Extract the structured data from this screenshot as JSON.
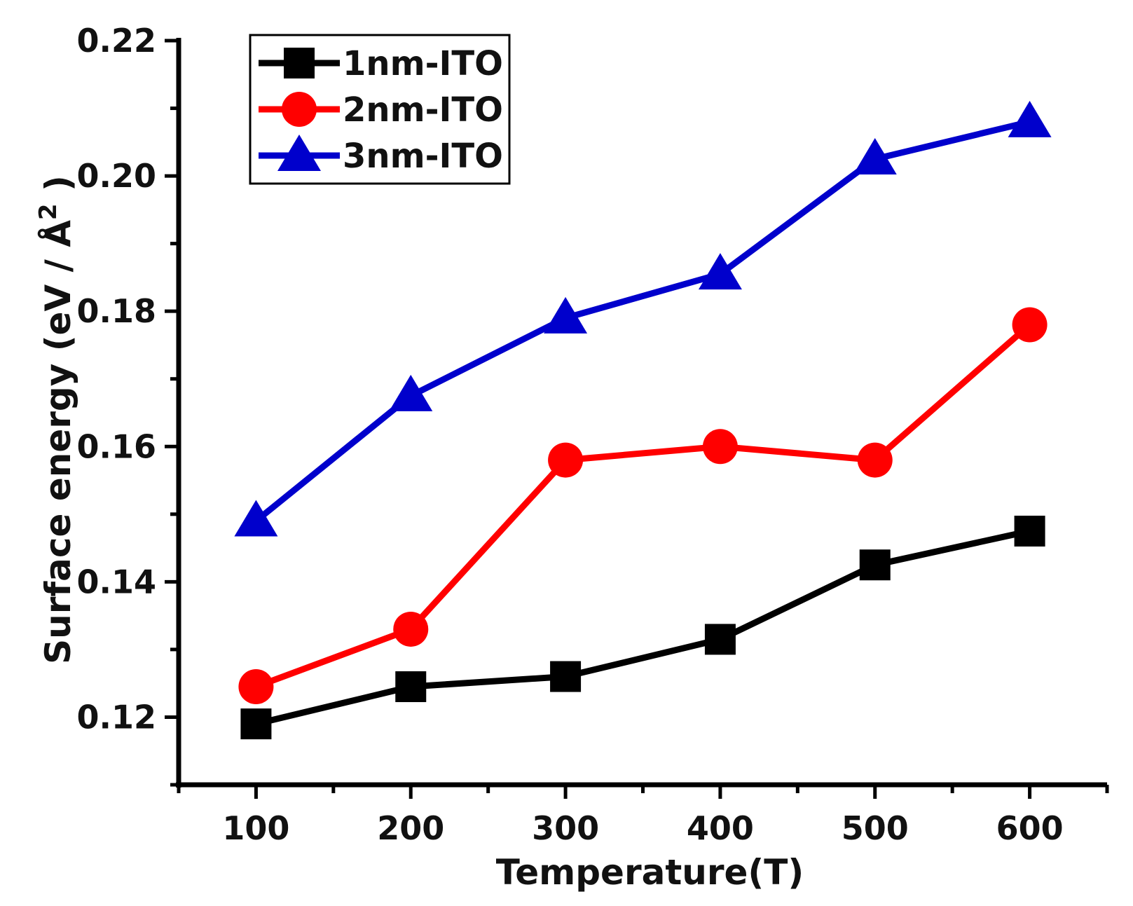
{
  "chart_data": {
    "type": "line",
    "title": "",
    "xlabel": "Temperature(T)",
    "ylabel": "Surface energy (eV / Å²)",
    "ylabel_main": "Surface energy (eV / Å",
    "ylabel_sup": "2",
    "ylabel_close": ")",
    "x": [
      100,
      200,
      300,
      400,
      500,
      600
    ],
    "xlim": [
      50,
      650
    ],
    "ylim": [
      0.11,
      0.22
    ],
    "xticks": [
      100,
      200,
      300,
      400,
      500,
      600
    ],
    "xtick_labels": [
      "100",
      "200",
      "300",
      "400",
      "500",
      "600"
    ],
    "yticks": [
      0.12,
      0.14,
      0.16,
      0.18,
      0.2,
      0.22
    ],
    "ytick_labels": [
      "0.12",
      "0.14",
      "0.16",
      "0.18",
      "0.20",
      "0.22"
    ],
    "grid": false,
    "legend_position": "top-left",
    "series": [
      {
        "name": "1nm-ITO",
        "marker": "square",
        "color": "#000000",
        "values": [
          0.119,
          0.1245,
          0.126,
          0.1315,
          0.1425,
          0.1475
        ]
      },
      {
        "name": "2nm-ITO",
        "marker": "circle",
        "color": "#ff0000",
        "values": [
          0.1245,
          0.133,
          0.158,
          0.16,
          0.158,
          0.178
        ]
      },
      {
        "name": "3nm-ITO",
        "marker": "triangle",
        "color": "#0000cc",
        "values": [
          0.149,
          0.1675,
          0.179,
          0.1855,
          0.2025,
          0.208
        ]
      }
    ]
  }
}
